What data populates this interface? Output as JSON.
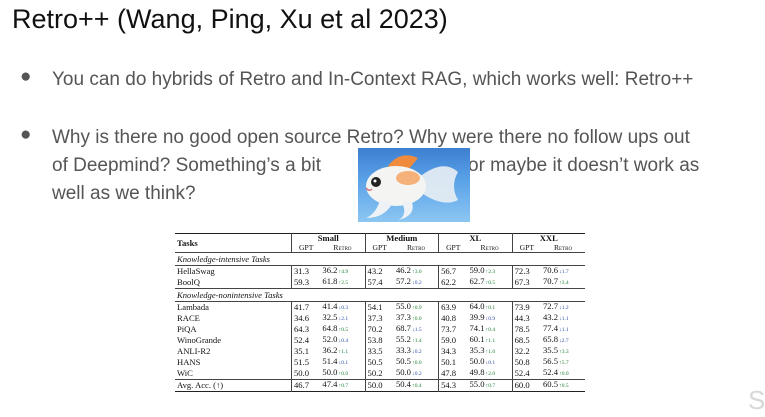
{
  "slide": {
    "title": "Retro++ (Wang, Ping, Xu et al 2023)",
    "bullets": [
      {
        "marker": "●",
        "text": "You can do hybrids of Retro and In-Context RAG, which works well: Retro++"
      },
      {
        "marker": "●",
        "line1": "Why is there no good open source Retro? Why were there no follow ups out",
        "line2a": "of Deepmind? Something’s a bit",
        "line2b": "or maybe it doesn’t work as",
        "line3": "well as we think?"
      }
    ],
    "image_icon": "goldfish-photo",
    "watermark": "S"
  },
  "table": {
    "tasks_header": "Tasks",
    "groups": [
      "Small",
      "Medium",
      "XL",
      "XXL"
    ],
    "subheaders": [
      "GPT",
      "Retro"
    ],
    "sections": [
      {
        "title": "Knowledge-intensive Tasks",
        "rows": [
          {
            "task": "HellaSwag",
            "cells": [
              [
                "31.3",
                "36.2",
                "↑4.9",
                "up"
              ],
              [
                "43.2",
                "46.2",
                "↑3.0",
                "up"
              ],
              [
                "56.7",
                "59.0",
                "↑2.3",
                "up"
              ],
              [
                "72.3",
                "70.6",
                "↓1.7",
                "down"
              ]
            ]
          },
          {
            "task": "BoolQ",
            "cells": [
              [
                "59.3",
                "61.8",
                "↑2.5",
                "up"
              ],
              [
                "57.4",
                "57.2",
                "↓0.2",
                "down"
              ],
              [
                "62.2",
                "62.7",
                "↑0.5",
                "up"
              ],
              [
                "67.3",
                "70.7",
                "↑3.4",
                "up"
              ]
            ]
          }
        ]
      },
      {
        "title": "Knowledge-nonintensive Tasks",
        "rows": [
          {
            "task": "Lambada",
            "cells": [
              [
                "41.7",
                "41.4",
                "↓0.3",
                "down"
              ],
              [
                "54.1",
                "55.0",
                "↑0.9",
                "up"
              ],
              [
                "63.9",
                "64.0",
                "↑0.1",
                "up"
              ],
              [
                "73.9",
                "72.7",
                "↓1.2",
                "down"
              ]
            ]
          },
          {
            "task": "RACE",
            "cells": [
              [
                "34.6",
                "32.5",
                "↓2.1",
                "down"
              ],
              [
                "37.3",
                "37.3",
                "↑0.0",
                "up"
              ],
              [
                "40.8",
                "39.9",
                "↓0.9",
                "down"
              ],
              [
                "44.3",
                "43.2",
                "↓1.1",
                "down"
              ]
            ]
          },
          {
            "task": "PiQA",
            "cells": [
              [
                "64.3",
                "64.8",
                "↑0.5",
                "up"
              ],
              [
                "70.2",
                "68.7",
                "↓1.5",
                "down"
              ],
              [
                "73.7",
                "74.1",
                "↑0.4",
                "up"
              ],
              [
                "78.5",
                "77.4",
                "↓1.1",
                "down"
              ]
            ]
          },
          {
            "task": "WinoGrande",
            "cells": [
              [
                "52.4",
                "52.0",
                "↓0.4",
                "down"
              ],
              [
                "53.8",
                "55.2",
                "↑1.4",
                "up"
              ],
              [
                "59.0",
                "60.1",
                "↑1.1",
                "up"
              ],
              [
                "68.5",
                "65.8",
                "↓2.7",
                "down"
              ]
            ]
          },
          {
            "task": "ANLI-R2",
            "cells": [
              [
                "35.1",
                "36.2",
                "↑1.1",
                "up"
              ],
              [
                "33.5",
                "33.3",
                "↓0.2",
                "down"
              ],
              [
                "34.3",
                "35.3",
                "↑1.0",
                "up"
              ],
              [
                "32.2",
                "35.5",
                "↑3.3",
                "up"
              ]
            ]
          },
          {
            "task": "HANS",
            "cells": [
              [
                "51.5",
                "51.4",
                "↓0.1",
                "down"
              ],
              [
                "50.5",
                "50.5",
                "↑0.0",
                "up"
              ],
              [
                "50.1",
                "50.0",
                "↓0.1",
                "down"
              ],
              [
                "50.8",
                "56.5",
                "↑5.7",
                "up"
              ]
            ]
          },
          {
            "task": "WiC",
            "cells": [
              [
                "50.0",
                "50.0",
                "↑0.0",
                "up"
              ],
              [
                "50.2",
                "50.0",
                "↓0.2",
                "down"
              ],
              [
                "47.8",
                "49.8",
                "↑2.0",
                "up"
              ],
              [
                "52.4",
                "52.4",
                "↑0.0",
                "up"
              ]
            ]
          }
        ]
      }
    ],
    "avg_row": {
      "task": "Avg. Acc. (↑)",
      "cells": [
        [
          "46.7",
          "47.4",
          "↑0.7",
          "up"
        ],
        [
          "50.0",
          "50.4",
          "↑0.4",
          "up"
        ],
        [
          "54.3",
          "55.0",
          "↑0.7",
          "up"
        ],
        [
          "60.0",
          "60.5",
          "↑0.5",
          "up"
        ]
      ]
    }
  }
}
